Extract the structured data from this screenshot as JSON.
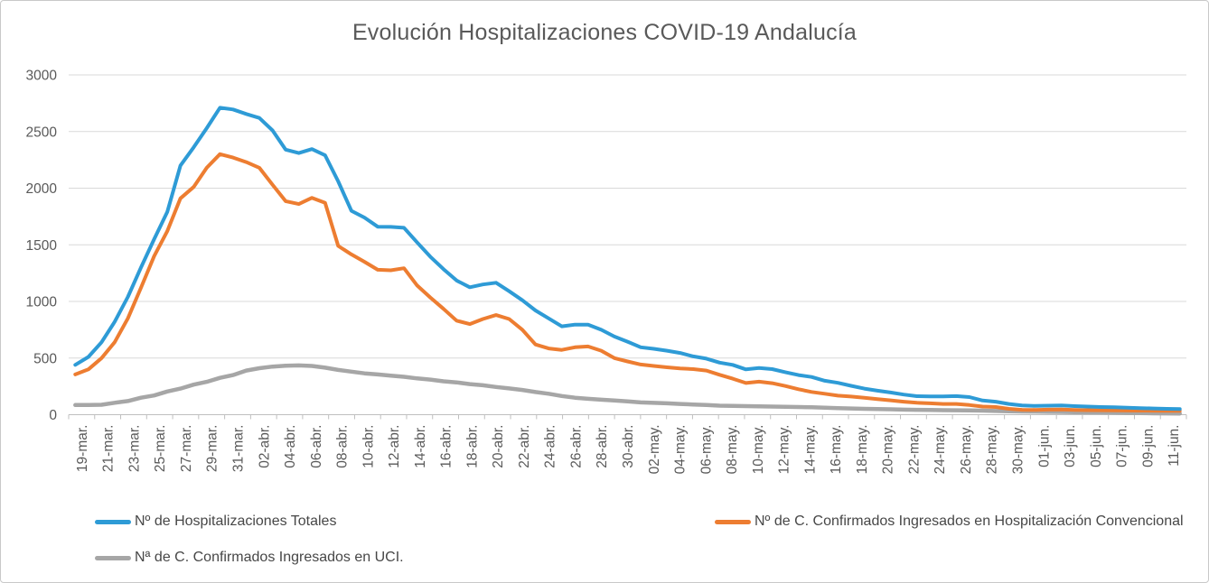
{
  "window": {
    "background": "#ffffff",
    "border_color": "#c9c9c9"
  },
  "chart_data": {
    "type": "line",
    "title": "Evolución Hospitalizaciones COVID-19 Andalucía",
    "title_color": "#595959",
    "axis_label_color": "#595959",
    "gridline_color": "#d9d9d9",
    "axis_line_color": "#bfbfbf",
    "grid": "horizontal",
    "legend_position": "bottom-left, two rows",
    "ylim": [
      0,
      3000
    ],
    "y_ticks": [
      0,
      500,
      1000,
      1500,
      2000,
      2500,
      3000
    ],
    "x_label_rotation": -90,
    "x_points_per_label": 2,
    "x_tick_labels": [
      "19-mar.",
      "21-mar.",
      "23-mar.",
      "25-mar.",
      "27-mar.",
      "29-mar.",
      "31-mar.",
      "02-abr.",
      "04-abr.",
      "06-abr.",
      "08-abr.",
      "10-abr.",
      "12-abr.",
      "14-abr.",
      "16-abr.",
      "18-abr.",
      "20-abr.",
      "22-abr.",
      "24-abr.",
      "26-abr.",
      "28-abr.",
      "30-abr.",
      "02-may.",
      "04-may.",
      "06-may.",
      "08-may.",
      "10-may.",
      "12-may.",
      "14-may.",
      "16-may.",
      "18-may.",
      "20-may.",
      "22-may.",
      "24-may.",
      "26-may.",
      "28-may.",
      "30-may.",
      "01-jun.",
      "03-jun.",
      "05-jun.",
      "07-jun.",
      "09-jun.",
      "11-jun."
    ],
    "series": [
      {
        "name": "Nº de Hospitalizaciones Totales",
        "color": "#2e9bd6",
        "stroke_width": 4,
        "values": [
          440,
          510,
          640,
          820,
          1040,
          1300,
          1550,
          1790,
          2200,
          2360,
          2530,
          2710,
          2695,
          2655,
          2620,
          2510,
          2340,
          2310,
          2345,
          2290,
          2060,
          1800,
          1740,
          1660,
          1658,
          1650,
          1520,
          1395,
          1285,
          1185,
          1125,
          1150,
          1165,
          1090,
          1010,
          920,
          850,
          780,
          795,
          795,
          750,
          690,
          645,
          595,
          582,
          565,
          545,
          515,
          495,
          460,
          440,
          400,
          412,
          402,
          375,
          350,
          333,
          300,
          281,
          255,
          230,
          212,
          196,
          178,
          163,
          161,
          161,
          164,
          155,
          125,
          115,
          95,
          82,
          77,
          80,
          82,
          76,
          72,
          68,
          65,
          62,
          58,
          55,
          52,
          50
        ]
      },
      {
        "name": "Nº de C. Confirmados Ingresados en Hospitalización Convencional",
        "color": "#ed7d31",
        "stroke_width": 4,
        "values": [
          355,
          400,
          500,
          640,
          850,
          1120,
          1400,
          1620,
          1910,
          2010,
          2180,
          2300,
          2270,
          2230,
          2180,
          2030,
          1885,
          1860,
          1915,
          1870,
          1490,
          1415,
          1350,
          1280,
          1275,
          1293,
          1140,
          1035,
          935,
          830,
          800,
          845,
          880,
          845,
          750,
          620,
          585,
          572,
          595,
          602,
          565,
          500,
          470,
          443,
          430,
          418,
          408,
          402,
          390,
          352,
          318,
          280,
          292,
          278,
          253,
          225,
          201,
          185,
          168,
          160,
          150,
          138,
          127,
          115,
          105,
          100,
          95,
          95,
          85,
          72,
          68,
          52,
          43,
          42,
          45,
          46,
          42,
          40,
          39,
          38,
          37,
          36,
          35,
          34,
          34
        ]
      },
      {
        "name": "Nª de C. Confirmados Ingresados en UCI.",
        "color": "#a6a6a6",
        "stroke_width": 4.5,
        "values": [
          85,
          85,
          88,
          105,
          120,
          150,
          170,
          205,
          230,
          265,
          290,
          325,
          350,
          390,
          410,
          425,
          432,
          435,
          430,
          415,
          395,
          380,
          365,
          355,
          345,
          335,
          320,
          310,
          295,
          285,
          270,
          260,
          245,
          232,
          218,
          200,
          185,
          165,
          150,
          140,
          132,
          125,
          118,
          108,
          104,
          100,
          95,
          90,
          85,
          80,
          78,
          76,
          74,
          72,
          70,
          68,
          65,
          62,
          58,
          55,
          52,
          50,
          48,
          45,
          43,
          42,
          40,
          39,
          38,
          36,
          33,
          30,
          28,
          27,
          25,
          24,
          22,
          21,
          20,
          18,
          15,
          14,
          12,
          11,
          10
        ]
      }
    ]
  }
}
